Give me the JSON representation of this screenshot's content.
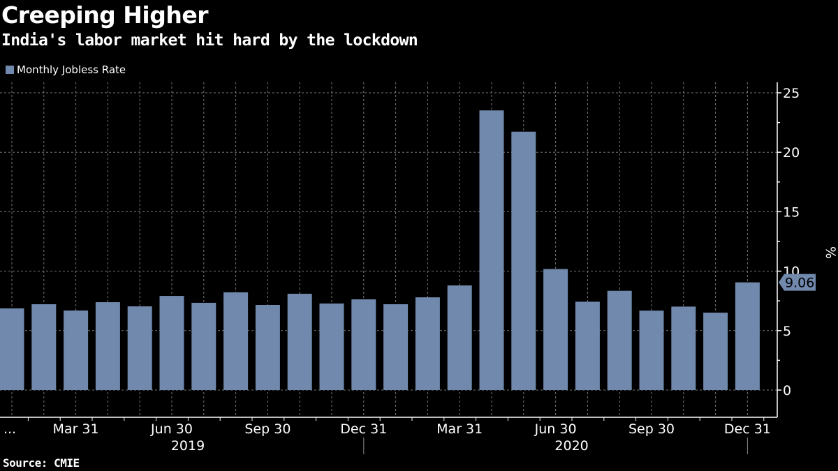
{
  "chart_data": {
    "type": "bar",
    "title": "Creeping Higher",
    "subtitle": "India's labor market hit hard by the lockdown",
    "source": "Source: CMIE",
    "legend": [
      {
        "name": "Monthly Jobless Rate",
        "color": "#7089ac"
      }
    ],
    "legend_position": "top-left",
    "ylabel": "%",
    "ylim": [
      0,
      25
    ],
    "yticks": [
      0,
      5,
      10,
      15,
      20,
      25
    ],
    "grid": true,
    "categories": [
      "Jan 2019",
      "Feb 2019",
      "Mar 2019",
      "Apr 2019",
      "May 2019",
      "Jun 2019",
      "Jul 2019",
      "Aug 2019",
      "Sep 2019",
      "Oct 2019",
      "Nov 2019",
      "Dec 2019",
      "Jan 2020",
      "Feb 2020",
      "Mar 2020",
      "Apr 2020",
      "May 2020",
      "Jun 2020",
      "Jul 2020",
      "Aug 2020",
      "Sep 2020",
      "Oct 2020",
      "Nov 2020",
      "Dec 2020"
    ],
    "series": [
      {
        "name": "Monthly Jobless Rate",
        "values": [
          6.87,
          7.22,
          6.69,
          7.39,
          7.04,
          7.92,
          7.34,
          8.22,
          7.16,
          8.1,
          7.28,
          7.63,
          7.22,
          7.8,
          8.8,
          23.52,
          21.73,
          10.18,
          7.43,
          8.35,
          6.68,
          7.02,
          6.51,
          9.06
        ]
      }
    ],
    "x_tick_labels": [
      {
        "label": "...",
        "index": 0
      },
      {
        "label": "Mar 31",
        "index": 2
      },
      {
        "label": "Jun 30",
        "index": 5
      },
      {
        "label": "Sep 30",
        "index": 8
      },
      {
        "label": "Dec 31",
        "index": 11
      },
      {
        "label": "Mar 31",
        "index": 14
      },
      {
        "label": "Jun 30",
        "index": 17
      },
      {
        "label": "Sep 30",
        "index": 20
      },
      {
        "label": "Dec 31",
        "index": 23
      }
    ],
    "year_labels": [
      {
        "label": "2019",
        "index": 5
      },
      {
        "label": "2020",
        "index": 17
      }
    ],
    "last_value_label": "9.06"
  }
}
